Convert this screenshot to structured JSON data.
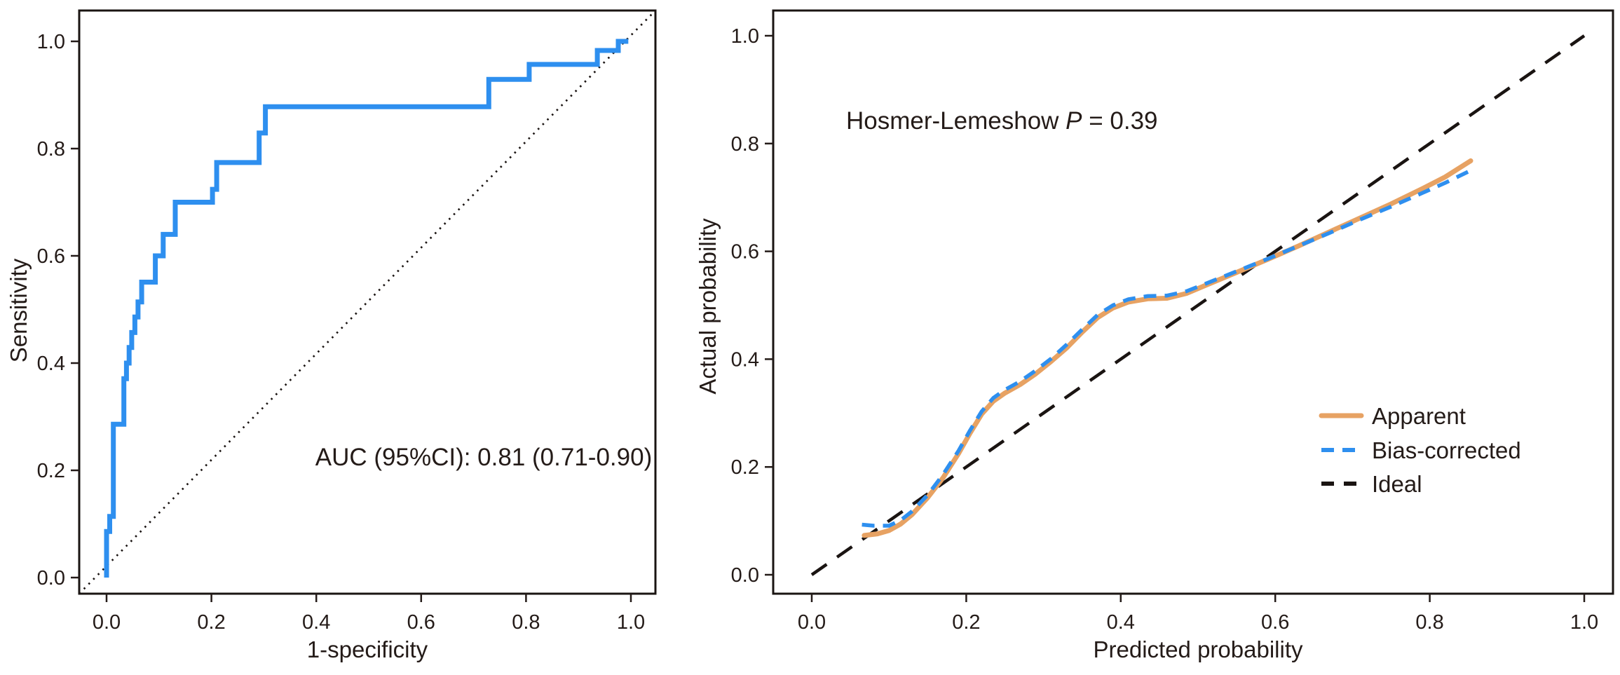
{
  "figure": {
    "background": "#ffffff",
    "ink_color": "#241b18",
    "accent_blue": "#2e8fef",
    "accent_orange": "#e7a263"
  },
  "chart_data": [
    {
      "type": "line",
      "name": "roc-curve-panel",
      "title": "",
      "xlabel": "1-specificity",
      "ylabel": "Sensitivity",
      "xlim": [
        0,
        1
      ],
      "ylim": [
        0,
        1
      ],
      "grid": false,
      "x_ticks": [
        "0.0",
        "0.2",
        "0.4",
        "0.6",
        "0.8",
        "1.0"
      ],
      "y_ticks": [
        "0.0",
        "0.2",
        "0.4",
        "0.6",
        "0.8",
        "1.0"
      ],
      "annotation": "AUC (95%CI): 0.81 (0.71-0.90)",
      "auc": "0.81",
      "auc_ci_low": "0.71",
      "auc_ci_high": "0.90",
      "series": [
        {
          "name": "ROC curve",
          "color": "#2e8fef",
          "style": "solid",
          "step": true,
          "points": [
            [
              0.0,
              0.0
            ],
            [
              0.0,
              0.086
            ],
            [
              0.006,
              0.086
            ],
            [
              0.006,
              0.114
            ],
            [
              0.013,
              0.114
            ],
            [
              0.013,
              0.286
            ],
            [
              0.033,
              0.286
            ],
            [
              0.033,
              0.371
            ],
            [
              0.038,
              0.371
            ],
            [
              0.038,
              0.4
            ],
            [
              0.043,
              0.4
            ],
            [
              0.043,
              0.429
            ],
            [
              0.048,
              0.429
            ],
            [
              0.048,
              0.457
            ],
            [
              0.054,
              0.457
            ],
            [
              0.054,
              0.486
            ],
            [
              0.06,
              0.486
            ],
            [
              0.06,
              0.514
            ],
            [
              0.067,
              0.514
            ],
            [
              0.067,
              0.551
            ],
            [
              0.093,
              0.551
            ],
            [
              0.093,
              0.6
            ],
            [
              0.108,
              0.6
            ],
            [
              0.108,
              0.64
            ],
            [
              0.131,
              0.64
            ],
            [
              0.131,
              0.7
            ],
            [
              0.202,
              0.7
            ],
            [
              0.202,
              0.724
            ],
            [
              0.21,
              0.724
            ],
            [
              0.21,
              0.774
            ],
            [
              0.291,
              0.774
            ],
            [
              0.291,
              0.829
            ],
            [
              0.303,
              0.829
            ],
            [
              0.303,
              0.878
            ],
            [
              0.729,
              0.878
            ],
            [
              0.729,
              0.929
            ],
            [
              0.806,
              0.929
            ],
            [
              0.806,
              0.957
            ],
            [
              0.936,
              0.957
            ],
            [
              0.936,
              0.983
            ],
            [
              0.976,
              0.983
            ],
            [
              0.976,
              1.0
            ],
            [
              0.995,
              1.0
            ]
          ]
        },
        {
          "name": "chance diagonal",
          "color": "#1a1412",
          "style": "dotted",
          "points": [
            [
              0,
              0
            ],
            [
              1,
              1
            ]
          ]
        }
      ]
    },
    {
      "type": "line",
      "name": "calibration-panel",
      "title": "",
      "xlabel": "Predicted probability",
      "ylabel": "Actual probability",
      "xlim": [
        0,
        1
      ],
      "ylim": [
        0,
        1
      ],
      "grid": false,
      "x_ticks": [
        "0.0",
        "0.2",
        "0.4",
        "0.6",
        "0.8",
        "1.0"
      ],
      "y_ticks": [
        "0.0",
        "0.2",
        "0.4",
        "0.6",
        "0.8",
        "1.0"
      ],
      "annotation": {
        "prefix": "Hosmer-Lemeshow ",
        "italic": "P",
        "suffix": " = 0.39"
      },
      "legend_position": "lower-right",
      "series": [
        {
          "name": "Apparent",
          "color": "#e7a263",
          "style": "solid",
          "points": [
            [
              0.068,
              0.073
            ],
            [
              0.085,
              0.076
            ],
            [
              0.1,
              0.082
            ],
            [
              0.115,
              0.094
            ],
            [
              0.13,
              0.112
            ],
            [
              0.15,
              0.143
            ],
            [
              0.17,
              0.18
            ],
            [
              0.19,
              0.225
            ],
            [
              0.205,
              0.263
            ],
            [
              0.22,
              0.298
            ],
            [
              0.235,
              0.322
            ],
            [
              0.25,
              0.337
            ],
            [
              0.27,
              0.353
            ],
            [
              0.29,
              0.373
            ],
            [
              0.31,
              0.396
            ],
            [
              0.33,
              0.421
            ],
            [
              0.35,
              0.45
            ],
            [
              0.37,
              0.477
            ],
            [
              0.39,
              0.495
            ],
            [
              0.41,
              0.506
            ],
            [
              0.435,
              0.512
            ],
            [
              0.46,
              0.513
            ],
            [
              0.485,
              0.522
            ],
            [
              0.51,
              0.537
            ],
            [
              0.55,
              0.561
            ],
            [
              0.59,
              0.585
            ],
            [
              0.63,
              0.61
            ],
            [
              0.67,
              0.636
            ],
            [
              0.71,
              0.662
            ],
            [
              0.75,
              0.688
            ],
            [
              0.79,
              0.716
            ],
            [
              0.82,
              0.738
            ],
            [
              0.853,
              0.768
            ]
          ]
        },
        {
          "name": "Bias-corrected",
          "color": "#2e8fef",
          "style": "dashed",
          "points": [
            [
              0.065,
              0.093
            ],
            [
              0.08,
              0.091
            ],
            [
              0.1,
              0.091
            ],
            [
              0.115,
              0.101
            ],
            [
              0.13,
              0.118
            ],
            [
              0.15,
              0.148
            ],
            [
              0.17,
              0.186
            ],
            [
              0.19,
              0.23
            ],
            [
              0.205,
              0.268
            ],
            [
              0.22,
              0.303
            ],
            [
              0.235,
              0.328
            ],
            [
              0.25,
              0.343
            ],
            [
              0.27,
              0.359
            ],
            [
              0.29,
              0.379
            ],
            [
              0.31,
              0.401
            ],
            [
              0.33,
              0.427
            ],
            [
              0.35,
              0.455
            ],
            [
              0.37,
              0.482
            ],
            [
              0.39,
              0.5
            ],
            [
              0.41,
              0.511
            ],
            [
              0.435,
              0.517
            ],
            [
              0.46,
              0.518
            ],
            [
              0.485,
              0.526
            ],
            [
              0.51,
              0.54
            ],
            [
              0.55,
              0.563
            ],
            [
              0.59,
              0.586
            ],
            [
              0.63,
              0.61
            ],
            [
              0.67,
              0.634
            ],
            [
              0.71,
              0.659
            ],
            [
              0.75,
              0.683
            ],
            [
              0.79,
              0.708
            ],
            [
              0.82,
              0.727
            ],
            [
              0.85,
              0.748
            ]
          ]
        },
        {
          "name": "Ideal",
          "color": "#1a1412",
          "style": "dashed",
          "points": [
            [
              0,
              0
            ],
            [
              1,
              1
            ]
          ]
        }
      ]
    }
  ]
}
